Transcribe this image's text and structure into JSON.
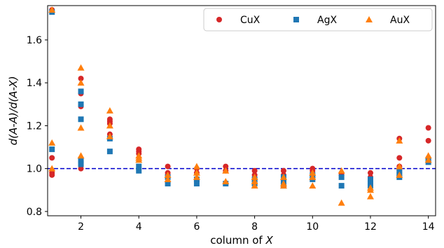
{
  "chart_data": {
    "type": "scatter",
    "xlabel_prefix": "column of ",
    "xlabel_var": "X",
    "ylabel": "d(A-A)/d(A-X)",
    "xlim": [
      0.85,
      14.25
    ],
    "ylim": [
      0.78,
      1.76
    ],
    "xticks": [
      2,
      4,
      6,
      8,
      10,
      12,
      14
    ],
    "yticks": [
      0.8,
      1.0,
      1.2,
      1.4,
      1.6
    ],
    "ytick_labels": [
      "0.8",
      "1.0",
      "1.2",
      "1.4",
      "1.6"
    ],
    "reference_line": {
      "y": 1.0,
      "color": "#0000cc",
      "style": "dashed"
    },
    "grid": false,
    "legend": {
      "placement": "top-right",
      "ncol": 3
    },
    "series": [
      {
        "name": "CuX",
        "marker": "circle",
        "color": "#d62728",
        "points": [
          [
            1,
            1.05
          ],
          [
            1,
            0.98
          ],
          [
            1,
            0.97
          ],
          [
            1,
            1.74
          ],
          [
            2,
            1.42
          ],
          [
            2,
            1.35
          ],
          [
            2,
            1.29
          ],
          [
            2,
            1.0
          ],
          [
            3,
            1.23
          ],
          [
            3,
            1.22
          ],
          [
            3,
            1.21
          ],
          [
            3,
            1.16
          ],
          [
            4,
            1.09
          ],
          [
            4,
            1.08
          ],
          [
            4,
            1.07
          ],
          [
            5,
            1.01
          ],
          [
            5,
            0.98
          ],
          [
            5,
            0.97
          ],
          [
            6,
            1.0
          ],
          [
            6,
            0.98
          ],
          [
            7,
            1.01
          ],
          [
            7,
            0.99
          ],
          [
            8,
            0.99
          ],
          [
            8,
            0.97
          ],
          [
            9,
            0.99
          ],
          [
            9,
            0.97
          ],
          [
            10,
            1.0
          ],
          [
            10,
            0.99
          ],
          [
            11,
            0.98
          ],
          [
            11,
            0.97
          ],
          [
            12,
            0.98
          ],
          [
            12,
            0.96
          ],
          [
            13,
            1.14
          ],
          [
            13,
            1.05
          ],
          [
            13,
            1.01
          ],
          [
            13,
            0.99
          ],
          [
            14,
            1.19
          ],
          [
            14,
            1.13
          ],
          [
            14,
            1.05
          ]
        ]
      },
      {
        "name": "AgX",
        "marker": "square",
        "color": "#1f77b4",
        "points": [
          [
            1,
            1.09
          ],
          [
            1,
            1.73
          ],
          [
            2,
            1.36
          ],
          [
            2,
            1.3
          ],
          [
            2,
            1.23
          ],
          [
            2,
            1.04
          ],
          [
            2,
            1.02
          ],
          [
            3,
            1.14
          ],
          [
            3,
            1.08
          ],
          [
            4,
            1.01
          ],
          [
            4,
            0.99
          ],
          [
            5,
            0.96
          ],
          [
            5,
            0.93
          ],
          [
            6,
            0.95
          ],
          [
            6,
            0.93
          ],
          [
            7,
            0.93
          ],
          [
            8,
            0.95
          ],
          [
            8,
            0.93
          ],
          [
            9,
            0.96
          ],
          [
            9,
            0.94
          ],
          [
            9,
            0.92
          ],
          [
            10,
            0.97
          ],
          [
            10,
            0.95
          ],
          [
            11,
            0.96
          ],
          [
            11,
            0.92
          ],
          [
            12,
            0.95
          ],
          [
            12,
            0.93
          ],
          [
            12,
            0.92
          ],
          [
            13,
            0.99
          ],
          [
            13,
            0.97
          ],
          [
            13,
            0.96
          ],
          [
            14,
            1.04
          ],
          [
            14,
            1.03
          ]
        ]
      },
      {
        "name": "AuX",
        "marker": "triangle",
        "color": "#ff7f0e",
        "points": [
          [
            1,
            1.12
          ],
          [
            1,
            1.0
          ],
          [
            1,
            1.74
          ],
          [
            2,
            1.47
          ],
          [
            2,
            1.4
          ],
          [
            2,
            1.19
          ],
          [
            2,
            1.06
          ],
          [
            3,
            1.27
          ],
          [
            3,
            1.2
          ],
          [
            3,
            1.15
          ],
          [
            4,
            1.06
          ],
          [
            4,
            1.05
          ],
          [
            4,
            1.04
          ],
          [
            5,
            0.97
          ],
          [
            5,
            0.95
          ],
          [
            6,
            1.01
          ],
          [
            6,
            0.98
          ],
          [
            6,
            0.96
          ],
          [
            7,
            0.99
          ],
          [
            7,
            0.94
          ],
          [
            8,
            0.96
          ],
          [
            8,
            0.94
          ],
          [
            8,
            0.92
          ],
          [
            9,
            0.96
          ],
          [
            9,
            0.93
          ],
          [
            9,
            0.92
          ],
          [
            10,
            0.98
          ],
          [
            10,
            0.96
          ],
          [
            10,
            0.92
          ],
          [
            11,
            0.99
          ],
          [
            11,
            0.84
          ],
          [
            12,
            0.91
          ],
          [
            12,
            0.9
          ],
          [
            12,
            0.87
          ],
          [
            13,
            1.13
          ],
          [
            13,
            1.01
          ],
          [
            13,
            0.97
          ],
          [
            14,
            1.06
          ],
          [
            14,
            1.04
          ]
        ]
      }
    ]
  }
}
